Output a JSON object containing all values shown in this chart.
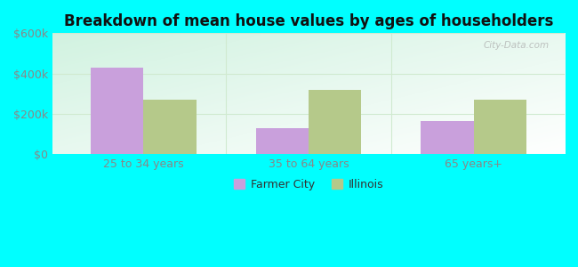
{
  "title": "Breakdown of mean house values by ages of householders",
  "categories": [
    "25 to 34 years",
    "35 to 64 years",
    "65 years+"
  ],
  "farmer_city_values": [
    430000,
    130000,
    165000
  ],
  "illinois_values": [
    270000,
    320000,
    270000
  ],
  "farmer_city_color": "#c9a0dc",
  "illinois_color": "#b5c98a",
  "ylim": [
    0,
    600000
  ],
  "yticks": [
    0,
    200000,
    400000,
    600000
  ],
  "ytick_labels": [
    "$0",
    "$200k",
    "$400k",
    "$600k"
  ],
  "outer_bg": "#00ffff",
  "bar_width": 0.32,
  "legend_labels": [
    "Farmer City",
    "Illinois"
  ],
  "watermark": "City-Data.com",
  "grid_color": "#d0ead0",
  "tick_color": "#888888",
  "title_fontsize": 12
}
